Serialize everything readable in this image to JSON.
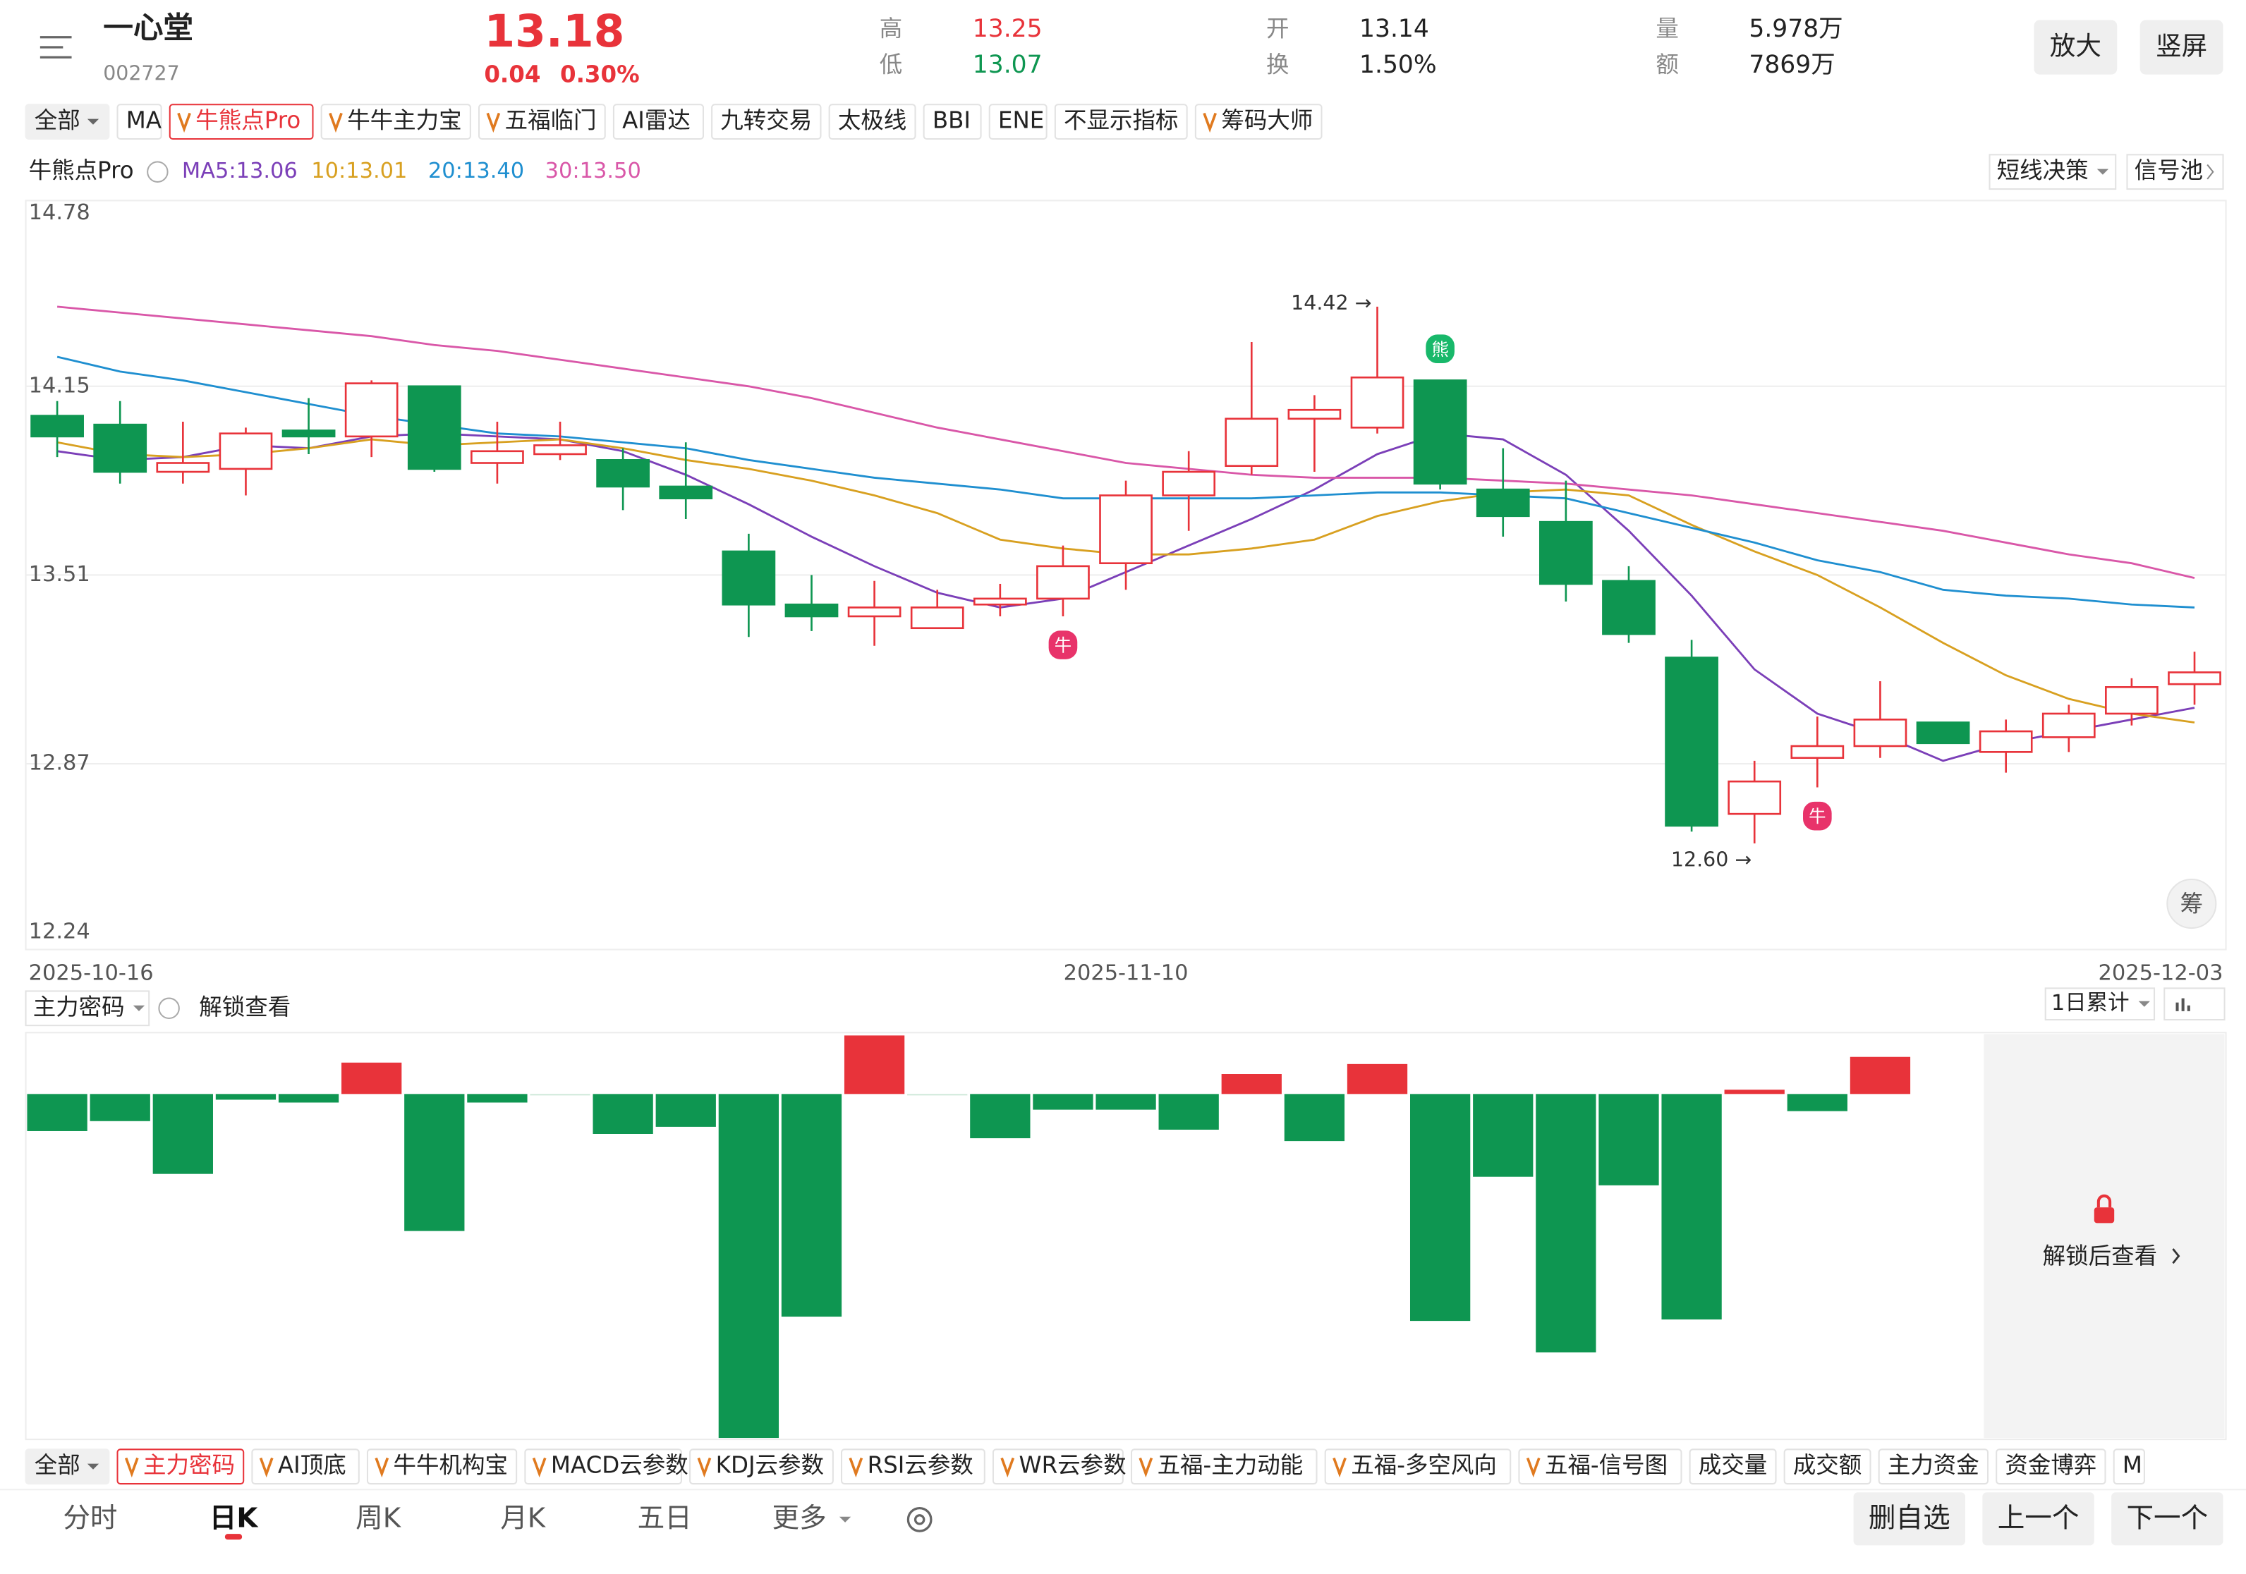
{
  "header": {
    "name": "一心堂",
    "code": "002727",
    "price": 13.18,
    "change": 0.04,
    "change_pct": "0.30%",
    "stats": [
      {
        "label": "高",
        "value": 13.25
      },
      {
        "label": "低",
        "value": 13.07
      },
      {
        "label": "开",
        "value": 13.14
      },
      {
        "label": "换",
        "value": "1.50%"
      },
      {
        "label": "量",
        "value": "5.978万"
      },
      {
        "label": "额",
        "value": "7869万"
      }
    ],
    "buttons": [
      "放大",
      "竖屏"
    ]
  },
  "indicator_tabs": [
    {
      "label": "全部"
    },
    {
      "label": "MA"
    },
    {
      "label": "牛熊点Pro",
      "vip": true,
      "selected": true
    },
    {
      "label": "牛牛主力宝",
      "vip": true
    },
    {
      "label": "五福临门",
      "vip": true
    },
    {
      "label": "AI雷达"
    },
    {
      "label": "九转交易"
    },
    {
      "label": "太极线"
    },
    {
      "label": "BBI"
    },
    {
      "label": "ENE"
    },
    {
      "label": "不显示指标"
    },
    {
      "label": "筹码大师",
      "vip": true
    }
  ],
  "legend": {
    "indicator": "牛熊点Pro",
    "decision": "短线决策",
    "pool": "信号池",
    "chips": "筹"
  },
  "chart_data": [
    {
      "type": "candlestick",
      "categories": [
        "2025-10-16",
        null,
        null,
        null,
        null,
        null,
        null,
        null,
        null,
        null,
        null,
        null,
        null,
        null,
        null,
        null,
        null,
        "2025-11-10",
        null,
        null,
        null,
        null,
        null,
        null,
        null,
        null,
        null,
        null,
        null,
        null,
        null,
        null,
        null,
        null,
        "2025-12-03"
      ],
      "open": [
        14.05,
        14.02,
        13.86,
        13.87,
        14.0,
        13.98,
        14.15,
        13.89,
        13.92,
        13.9,
        13.81,
        13.59,
        13.41,
        13.37,
        13.33,
        13.41,
        13.43,
        13.55,
        13.78,
        13.88,
        14.04,
        14.01,
        14.17,
        13.8,
        13.69,
        13.49,
        13.23,
        12.7,
        12.89,
        12.93,
        13.01,
        12.91,
        12.96,
        13.04,
        13.14
      ],
      "close": [
        13.98,
        13.86,
        13.89,
        13.99,
        13.98,
        14.16,
        13.87,
        13.93,
        13.95,
        13.81,
        13.77,
        13.41,
        13.37,
        13.4,
        13.4,
        13.43,
        13.54,
        13.78,
        13.86,
        14.04,
        14.07,
        14.18,
        13.82,
        13.71,
        13.48,
        13.31,
        12.66,
        12.81,
        12.93,
        13.02,
        12.94,
        12.98,
        13.04,
        13.13,
        13.18
      ],
      "high": [
        14.1,
        14.1,
        14.03,
        14.01,
        14.11,
        14.17,
        14.15,
        14.03,
        14.03,
        13.94,
        13.96,
        13.65,
        13.51,
        13.49,
        13.46,
        13.48,
        13.61,
        13.83,
        13.93,
        14.3,
        14.12,
        14.42,
        14.17,
        13.94,
        13.83,
        13.54,
        13.29,
        12.88,
        13.03,
        13.15,
        13.01,
        13.02,
        13.07,
        13.16,
        13.25
      ],
      "low": [
        13.91,
        13.82,
        13.82,
        13.78,
        13.92,
        13.91,
        13.86,
        13.82,
        13.9,
        13.73,
        13.7,
        13.3,
        13.32,
        13.27,
        13.33,
        13.37,
        13.37,
        13.46,
        13.66,
        13.85,
        13.86,
        13.99,
        13.8,
        13.64,
        13.42,
        13.28,
        12.64,
        12.6,
        12.79,
        12.89,
        12.94,
        12.84,
        12.91,
        13.0,
        13.07
      ],
      "high_label": "14.42 →",
      "low_label": "12.60 →",
      "signals": [
        null,
        null,
        null,
        null,
        null,
        null,
        null,
        null,
        null,
        null,
        null,
        null,
        null,
        null,
        null,
        null,
        "牛",
        null,
        null,
        null,
        null,
        null,
        "熊",
        null,
        null,
        null,
        null,
        null,
        "牛",
        null,
        null,
        null,
        null,
        null,
        null
      ],
      "up_color": "#e8333a",
      "down_color": "#0e9651",
      "series": [
        {
          "name": "MA5:13.06",
          "color": "#7b3fb8",
          "values": [
            13.93,
            13.9,
            13.91,
            13.95,
            13.94,
            13.98,
            13.99,
            13.98,
            13.97,
            13.93,
            13.85,
            13.75,
            13.64,
            13.54,
            13.45,
            13.4,
            13.43,
            13.52,
            13.61,
            13.7,
            13.8,
            13.92,
            13.99,
            13.97,
            13.85,
            13.66,
            13.44,
            13.19,
            13.04,
            12.97,
            12.88,
            12.94,
            12.98,
            13.02,
            13.06
          ]
        },
        {
          "name": "10:13.01",
          "color": "#d8a020",
          "values": [
            13.96,
            13.92,
            13.91,
            13.92,
            13.94,
            13.97,
            13.95,
            13.96,
            13.97,
            13.94,
            13.9,
            13.87,
            13.83,
            13.78,
            13.72,
            13.63,
            13.6,
            13.58,
            13.58,
            13.6,
            13.63,
            13.71,
            13.76,
            13.79,
            13.8,
            13.78,
            13.68,
            13.59,
            13.51,
            13.4,
            13.28,
            13.17,
            13.09,
            13.04,
            13.01
          ]
        },
        {
          "name": "20:13.40",
          "color": "#1f8fd0",
          "values": [
            14.25,
            14.2,
            14.17,
            14.13,
            14.09,
            14.05,
            14.02,
            13.99,
            13.98,
            13.96,
            13.94,
            13.9,
            13.87,
            13.84,
            13.82,
            13.8,
            13.77,
            13.77,
            13.77,
            13.77,
            13.78,
            13.79,
            13.79,
            13.78,
            13.77,
            13.72,
            13.67,
            13.62,
            13.56,
            13.52,
            13.46,
            13.44,
            13.43,
            13.41,
            13.4
          ]
        },
        {
          "name": "30:13.50",
          "color": "#d957a8",
          "values": [
            14.42,
            14.4,
            14.38,
            14.36,
            14.34,
            14.32,
            14.29,
            14.27,
            14.24,
            14.21,
            14.18,
            14.15,
            14.11,
            14.06,
            14.01,
            13.97,
            13.93,
            13.89,
            13.87,
            13.85,
            13.84,
            13.84,
            13.84,
            13.83,
            13.82,
            13.8,
            13.78,
            13.75,
            13.72,
            13.69,
            13.66,
            13.62,
            13.58,
            13.55,
            13.5
          ]
        }
      ],
      "ylim": [
        12.24,
        14.78
      ],
      "yticks": [
        14.78,
        14.15,
        13.51,
        12.87,
        12.24
      ],
      "grid": true
    },
    {
      "type": "bar",
      "title": "主力密码",
      "values": [
        -26,
        -19,
        -56,
        -4,
        -6,
        22,
        -96,
        -6,
        -1,
        -28,
        -23,
        -241,
        -156,
        41,
        0,
        -31,
        -11,
        -11,
        -25,
        14,
        -33,
        21,
        -159,
        -58,
        -181,
        -64,
        -158,
        3,
        -12,
        26,
        null,
        null,
        null,
        null,
        null
      ],
      "up_color": "#e8333a",
      "down_color": "#0e9651",
      "ylim": [
        -241,
        42
      ]
    }
  ],
  "lower_panel": {
    "unlock": "解锁查看",
    "period": "1日累计",
    "locked_text": "解锁后查看"
  },
  "sub_tabs": [
    {
      "label": "全部"
    },
    {
      "label": "主力密码",
      "vip": true,
      "selected": true
    },
    {
      "label": "AI顶底",
      "vip": true
    },
    {
      "label": "牛牛机构宝",
      "vip": true
    },
    {
      "label": "MACD云参数",
      "vip": true
    },
    {
      "label": "KDJ云参数",
      "vip": true
    },
    {
      "label": "RSI云参数",
      "vip": true
    },
    {
      "label": "WR云参数",
      "vip": true
    },
    {
      "label": "五福-主力动能",
      "vip": true
    },
    {
      "label": "五福-多空风向",
      "vip": true
    },
    {
      "label": "五福-信号图",
      "vip": true
    },
    {
      "label": "成交量"
    },
    {
      "label": "成交额"
    },
    {
      "label": "主力资金"
    },
    {
      "label": "资金博弈"
    },
    {
      "label": "M"
    }
  ],
  "nav": {
    "tabs": [
      "分时",
      "日K",
      "周K",
      "月K",
      "五日",
      "更多"
    ],
    "buttons": [
      "删自选",
      "上一个",
      "下一个"
    ]
  }
}
